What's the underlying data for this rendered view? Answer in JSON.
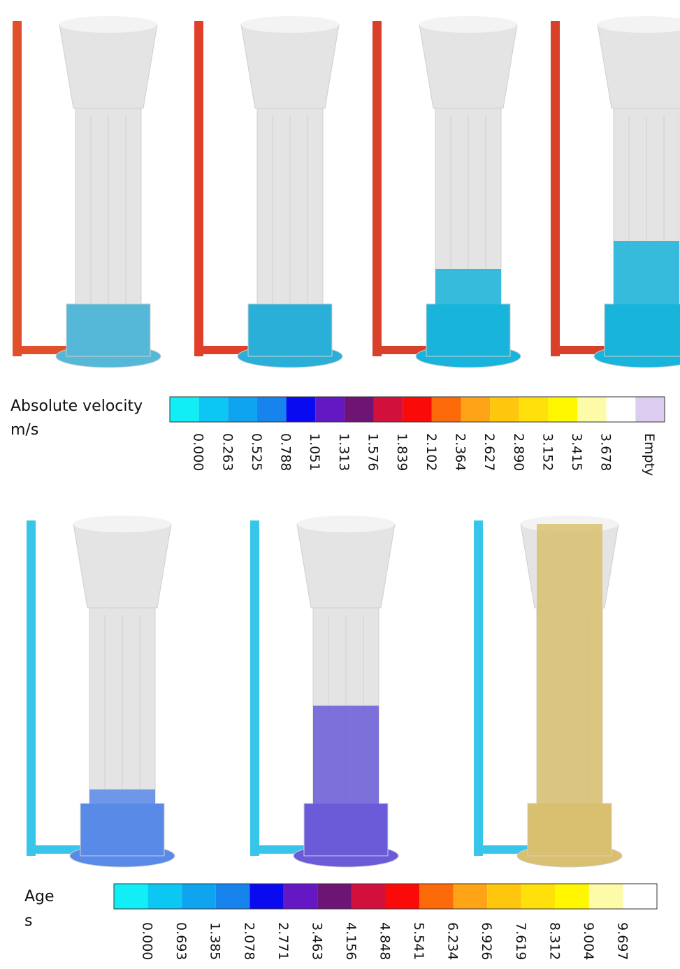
{
  "velocity_legend": {
    "title": "Absolute velocity",
    "unit": "m/s",
    "labels": [
      "0.000",
      "0.263",
      "0.525",
      "0.788",
      "1.051",
      "1.313",
      "1.576",
      "1.839",
      "2.102",
      "2.364",
      "2.627",
      "2.890",
      "3.152",
      "3.415",
      "3.678",
      "Empty"
    ],
    "colors": [
      "#12eef6",
      "#0cc6f4",
      "#0ea4f0",
      "#1784ee",
      "#0a0af0",
      "#6418c4",
      "#6e1474",
      "#d2103c",
      "#fb0a0a",
      "#fd6a0a",
      "#fea416",
      "#ffc60e",
      "#ffe00a",
      "#fff700",
      "#fdfaa8",
      "#ffffff",
      "#dccdf0"
    ]
  },
  "age_legend": {
    "title": "Age",
    "unit": "s",
    "labels": [
      "0.000",
      "0.693",
      "1.385",
      "2.078",
      "2.771",
      "3.463",
      "4.156",
      "4.848",
      "5.541",
      "6.234",
      "6.926",
      "7.619",
      "8.312",
      "9.004",
      "9.697"
    ],
    "colors": [
      "#12eef6",
      "#0cc6f4",
      "#0ea4f0",
      "#1784ee",
      "#0a0af0",
      "#6418c4",
      "#6e1474",
      "#d2103c",
      "#fb0a0a",
      "#fd6a0a",
      "#fea416",
      "#ffc60e",
      "#ffe00a",
      "#fff700",
      "#fdfaa8",
      "#ffffff"
    ]
  }
}
